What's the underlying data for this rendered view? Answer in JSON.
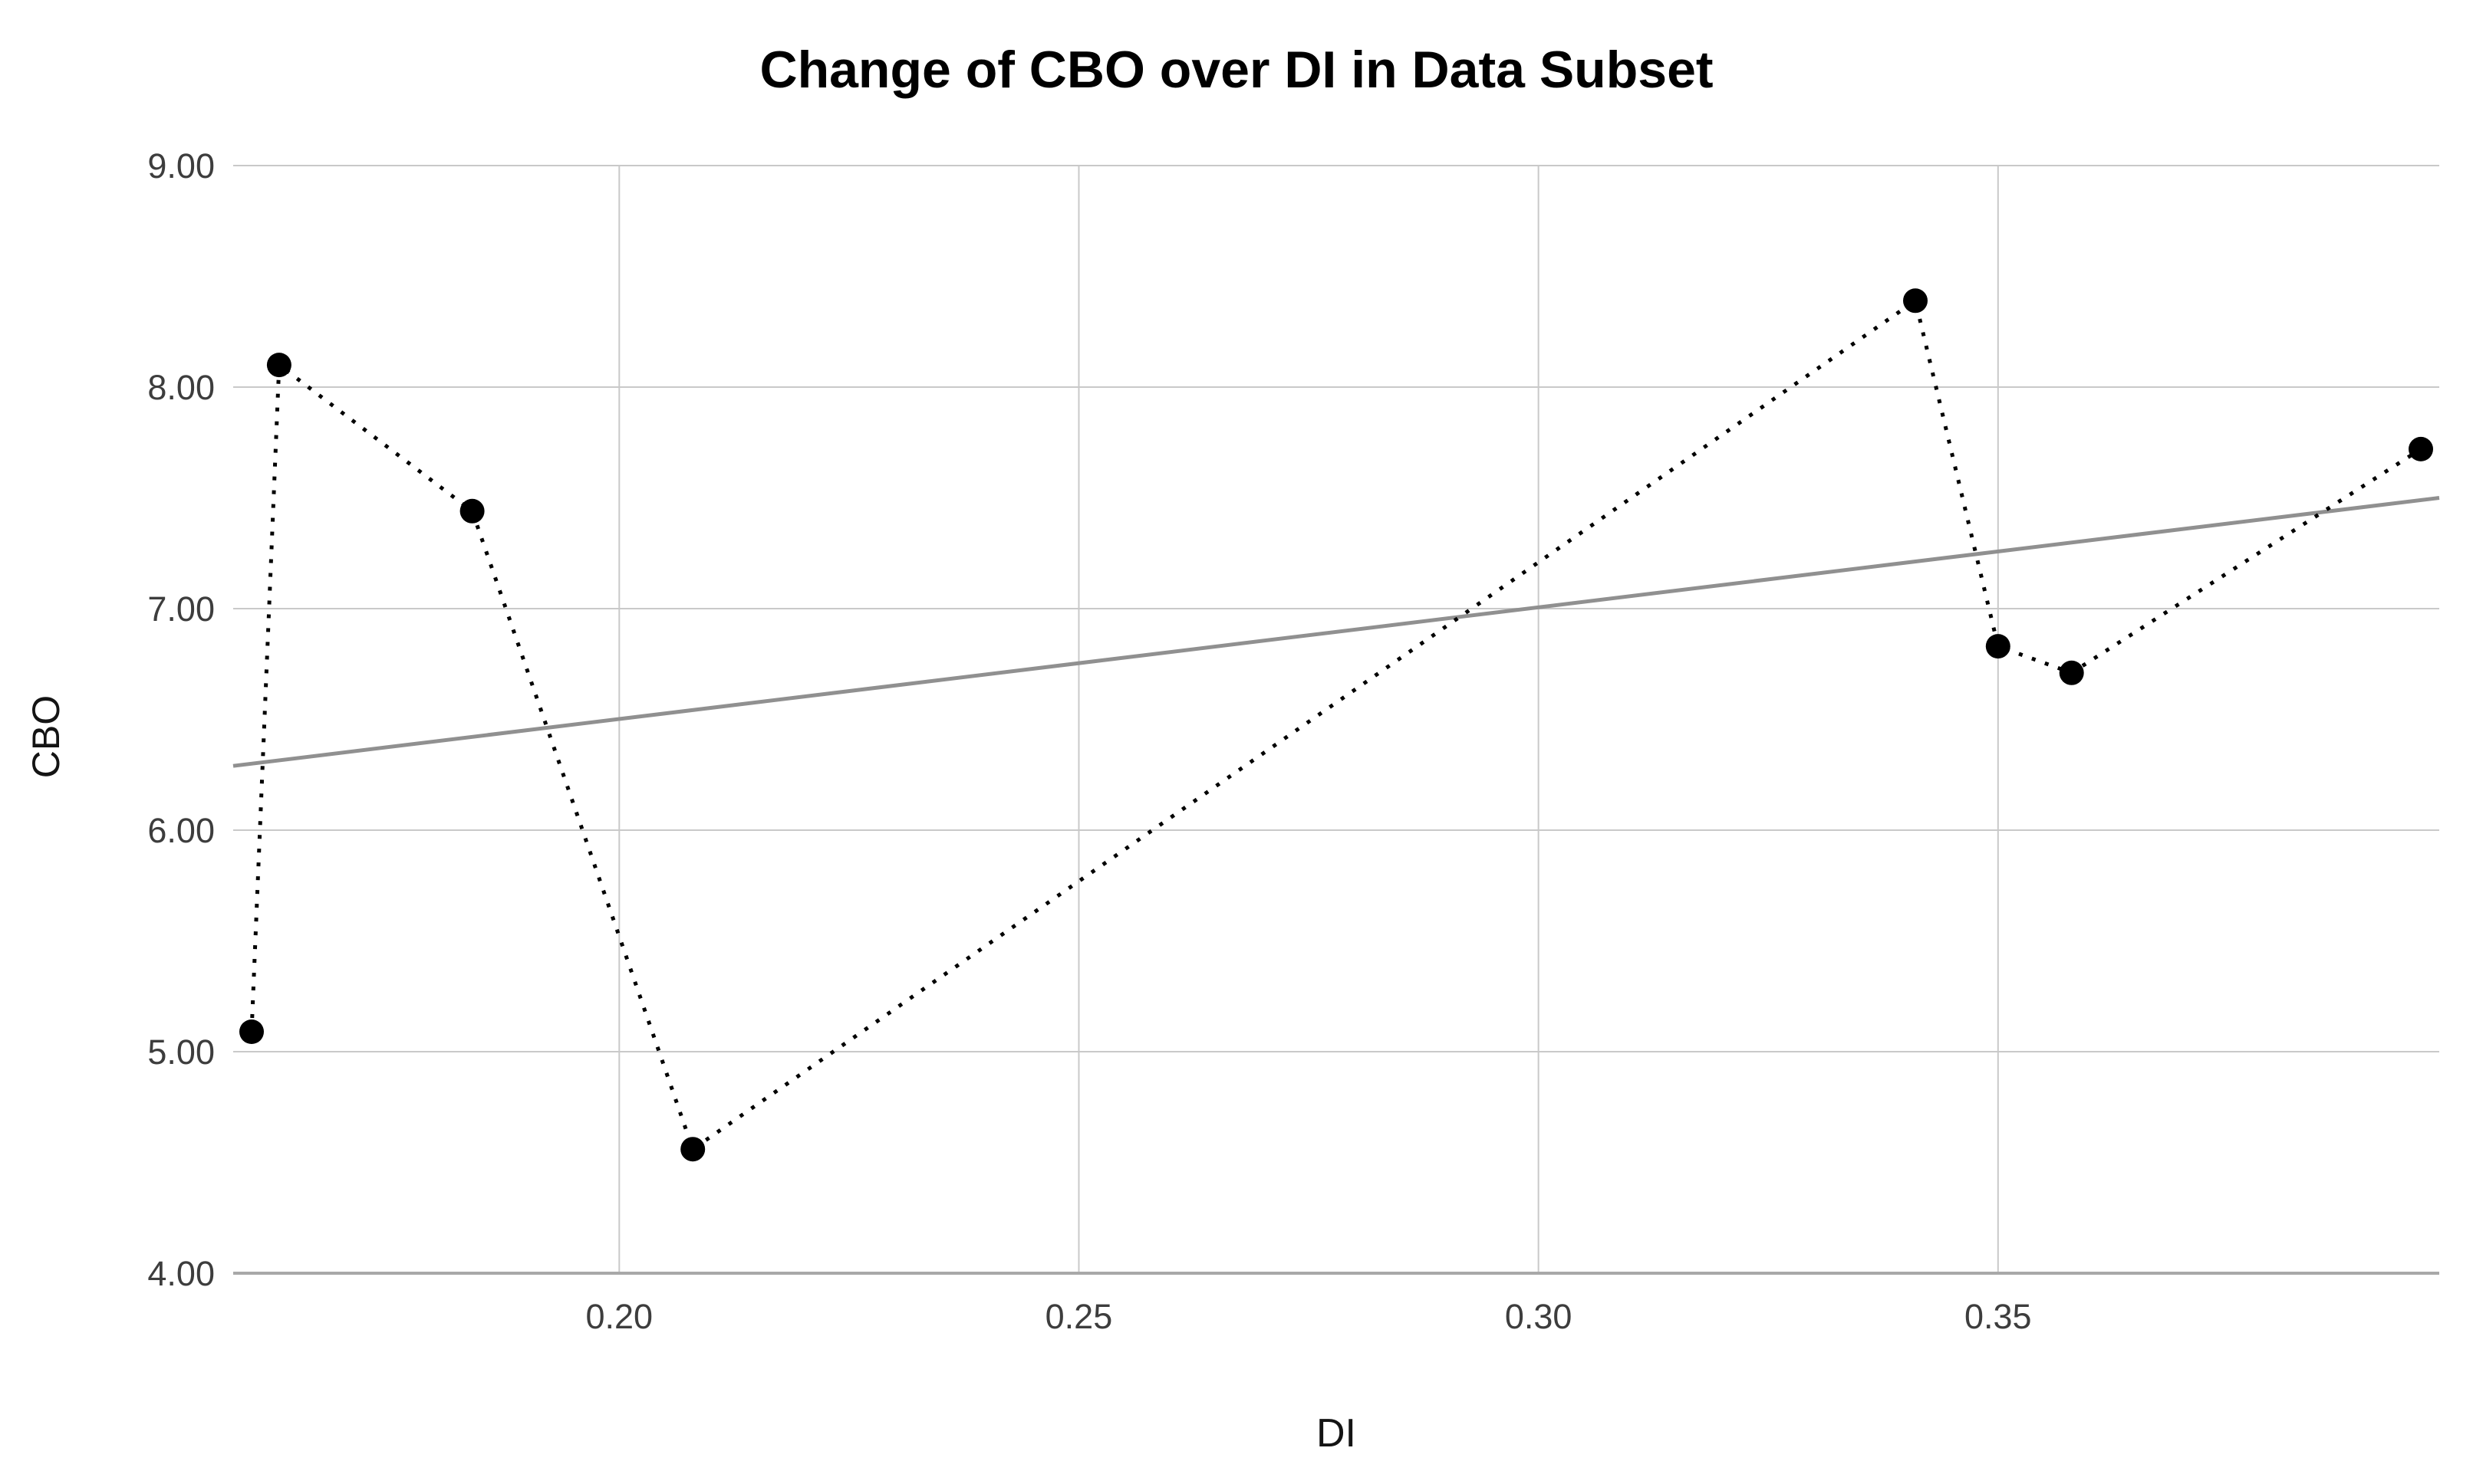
{
  "figure": {
    "title": "Change of CBO over DI in Data Subset",
    "x_axis_title": "DI",
    "y_axis_title": "CBO"
  },
  "chart_data": {
    "type": "line",
    "title": "Change of CBO over DI in Data Subset",
    "xlabel": "DI",
    "ylabel": "CBO",
    "xlim": [
      0.158,
      0.398
    ],
    "ylim": [
      4.0,
      9.0
    ],
    "grid": "on",
    "legend": "none",
    "x_ticks": [
      {
        "v": 0.2,
        "label": "0.20"
      },
      {
        "v": 0.25,
        "label": "0.25"
      },
      {
        "v": 0.3,
        "label": "0.30"
      },
      {
        "v": 0.35,
        "label": "0.35"
      }
    ],
    "y_ticks": [
      {
        "v": 4.0,
        "label": "4.00"
      },
      {
        "v": 5.0,
        "label": "5.00"
      },
      {
        "v": 6.0,
        "label": "6.00"
      },
      {
        "v": 7.0,
        "label": "7.00"
      },
      {
        "v": 8.0,
        "label": "8.00"
      },
      {
        "v": 9.0,
        "label": "9.00"
      }
    ],
    "series": [
      {
        "name": "observed CBO over DI (dotted line with circle markers)",
        "line_style": "dotted",
        "marker": "filled-circle",
        "color": "#000000",
        "points": [
          [
            0.16,
            5.09
          ],
          [
            0.163,
            8.1
          ],
          [
            0.184,
            7.44
          ],
          [
            0.208,
            4.56
          ],
          [
            0.341,
            8.39
          ],
          [
            0.35,
            6.83
          ],
          [
            0.358,
            6.71
          ],
          [
            0.396,
            7.72
          ]
        ]
      },
      {
        "name": "linear fit line",
        "line_style": "solid",
        "marker": "none",
        "color": "#909090",
        "points": [
          [
            0.158,
            6.29
          ],
          [
            0.398,
            7.5
          ]
        ]
      }
    ],
    "colors": {
      "background": "#ffffff",
      "gridline": "#c9c9c9",
      "axis_line": "#a8a8a8",
      "tick_label": "#3d3d3d",
      "title": "#000000",
      "series_line": "#000000",
      "fit_line": "#909090"
    }
  }
}
